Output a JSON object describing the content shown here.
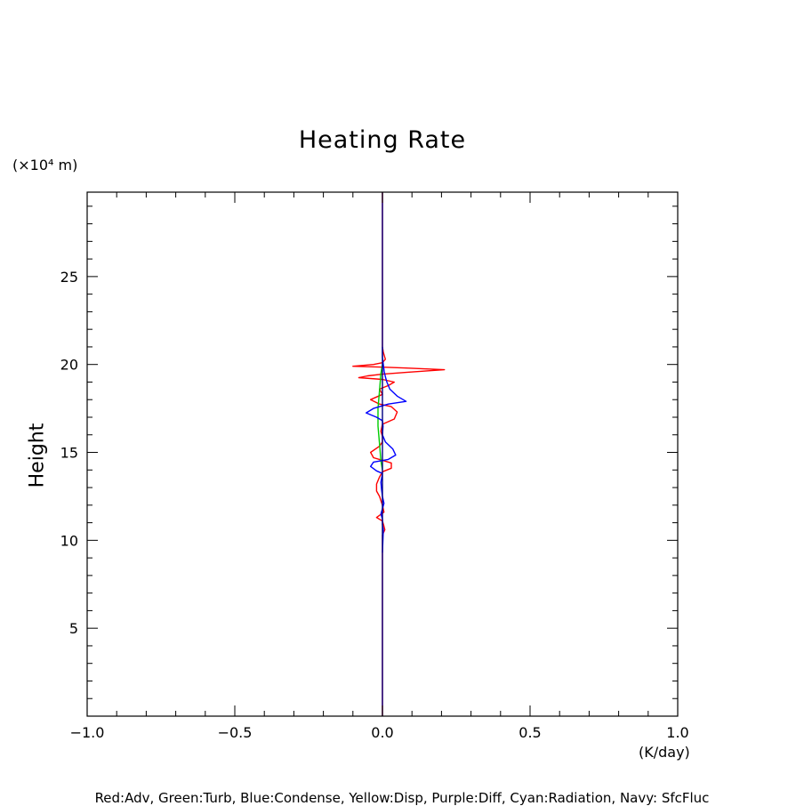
{
  "chart_data": {
    "type": "line",
    "title": "Heating Rate",
    "ylabel": "Height",
    "y_unit": "(×10⁴ m)",
    "x_unit": "(K/day)",
    "xlim": [
      -1.0,
      1.0
    ],
    "ylim": [
      0,
      29.8
    ],
    "x_ticks": [
      -1.0,
      -0.5,
      0.0,
      0.5,
      1.0
    ],
    "x_tick_labels": [
      "−1.0",
      "−0.5",
      "0.0",
      "0.5",
      "1.0"
    ],
    "y_ticks": [
      5,
      10,
      15,
      20,
      25
    ],
    "y_tick_labels": [
      "5",
      "10",
      "15",
      "20",
      "25"
    ],
    "legend_text": "Red:Adv, Green:Turb, Blue:Condense, Yellow:Disp, Purple:Diff, Cyan:Radiation, Navy: SfcFluc",
    "series": [
      {
        "name": "Adv",
        "color": "#ff0000",
        "points": [
          [
            0.0,
            29.8
          ],
          [
            0.0,
            22.0
          ],
          [
            0.0,
            21.0
          ],
          [
            0.003,
            20.7
          ],
          [
            0.01,
            20.3
          ],
          [
            0.0,
            20.1
          ],
          [
            -0.03,
            20.0
          ],
          [
            -0.1,
            19.9
          ],
          [
            0.0,
            19.85
          ],
          [
            0.08,
            19.8
          ],
          [
            0.21,
            19.7
          ],
          [
            0.08,
            19.55
          ],
          [
            0.0,
            19.45
          ],
          [
            -0.05,
            19.35
          ],
          [
            -0.08,
            19.25
          ],
          [
            0.0,
            19.15
          ],
          [
            0.04,
            19.0
          ],
          [
            0.02,
            18.8
          ],
          [
            -0.01,
            18.6
          ],
          [
            0.0,
            18.3
          ],
          [
            -0.04,
            18.0
          ],
          [
            -0.01,
            17.75
          ],
          [
            0.03,
            17.6
          ],
          [
            0.05,
            17.3
          ],
          [
            0.04,
            16.9
          ],
          [
            0.0,
            16.6
          ],
          [
            -0.005,
            16.2
          ],
          [
            0.0,
            15.9
          ],
          [
            0.0,
            15.6
          ],
          [
            -0.01,
            15.35
          ],
          [
            -0.04,
            15.0
          ],
          [
            -0.03,
            14.7
          ],
          [
            0.0,
            14.55
          ],
          [
            0.03,
            14.4
          ],
          [
            0.03,
            14.1
          ],
          [
            0.0,
            13.9
          ],
          [
            -0.01,
            13.6
          ],
          [
            -0.02,
            13.2
          ],
          [
            -0.02,
            12.8
          ],
          [
            -0.01,
            12.5
          ],
          [
            0.0,
            12.0
          ],
          [
            0.005,
            11.6
          ],
          [
            -0.02,
            11.3
          ],
          [
            0.0,
            11.1
          ],
          [
            0.005,
            10.8
          ],
          [
            0.008,
            10.6
          ],
          [
            0.0,
            10.3
          ],
          [
            0.0,
            5.0
          ],
          [
            0.0,
            0.0
          ]
        ]
      },
      {
        "name": "Turb",
        "color": "#00cc00",
        "points": [
          [
            0.0,
            20.0
          ],
          [
            -0.005,
            19.5
          ],
          [
            -0.01,
            18.5
          ],
          [
            -0.015,
            17.5
          ],
          [
            -0.015,
            16.5
          ],
          [
            -0.01,
            15.5
          ],
          [
            -0.005,
            14.5
          ],
          [
            0.0,
            14.0
          ]
        ]
      },
      {
        "name": "Condense",
        "color": "#0000ff",
        "points": [
          [
            0.0,
            21.0
          ],
          [
            0.0,
            20.4
          ],
          [
            0.003,
            20.0
          ],
          [
            0.006,
            19.6
          ],
          [
            0.01,
            19.3
          ],
          [
            0.015,
            19.0
          ],
          [
            0.025,
            18.6
          ],
          [
            0.05,
            18.2
          ],
          [
            0.08,
            17.9
          ],
          [
            0.02,
            17.75
          ],
          [
            -0.03,
            17.5
          ],
          [
            -0.055,
            17.25
          ],
          [
            -0.02,
            17.0
          ],
          [
            0.0,
            16.8
          ],
          [
            0.002,
            16.5
          ],
          [
            0.0,
            16.0
          ],
          [
            0.01,
            15.6
          ],
          [
            0.035,
            15.2
          ],
          [
            0.045,
            14.85
          ],
          [
            0.02,
            14.6
          ],
          [
            -0.03,
            14.45
          ],
          [
            -0.04,
            14.2
          ],
          [
            -0.02,
            13.95
          ],
          [
            0.0,
            13.8
          ],
          [
            -0.005,
            13.3
          ],
          [
            -0.003,
            12.9
          ],
          [
            0.0,
            12.5
          ],
          [
            0.005,
            12.1
          ],
          [
            0.0,
            11.8
          ],
          [
            -0.005,
            11.5
          ],
          [
            0.0,
            11.2
          ],
          [
            0.0,
            10.9
          ],
          [
            0.003,
            10.6
          ],
          [
            0.0,
            9.3
          ]
        ]
      },
      {
        "name": "SfcFluc",
        "color": "#000080",
        "points": [
          [
            0.0,
            29.8
          ],
          [
            0.0,
            0.0
          ]
        ]
      }
    ]
  }
}
